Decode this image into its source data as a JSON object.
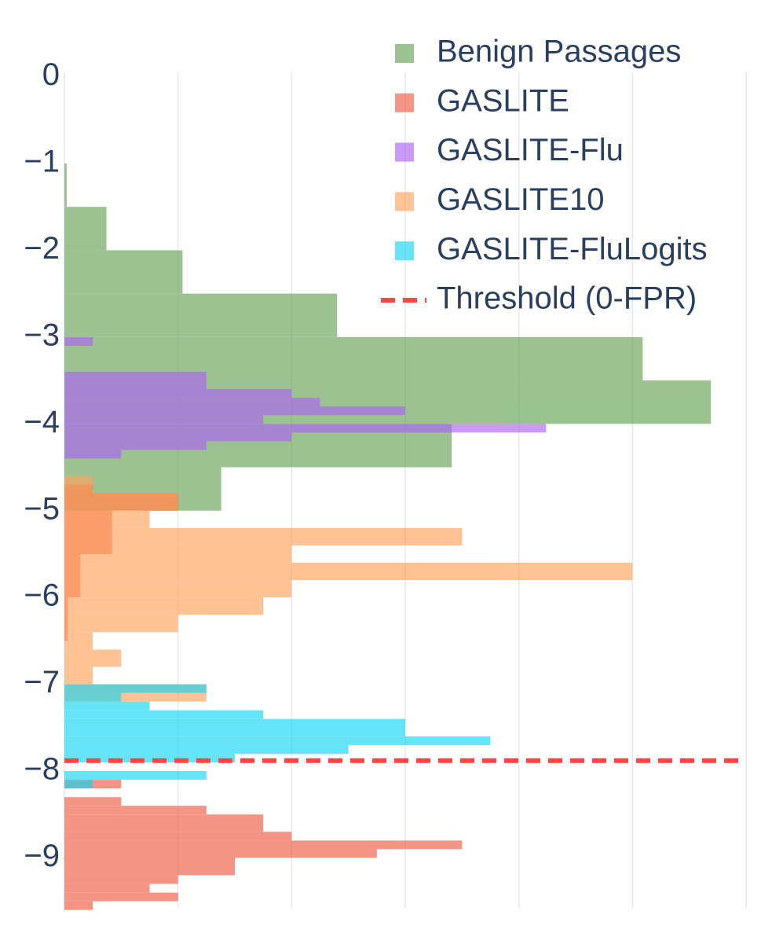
{
  "chart_data": {
    "type": "histogram",
    "orientation": "horizontal",
    "xlim": [
      0,
      6
    ],
    "xticks": [
      0,
      1,
      2,
      3,
      4,
      5,
      6
    ],
    "ylim": [
      -9.575,
      0.05
    ],
    "yticks": [
      0,
      {
        "value": -1,
        "label": "−1"
      },
      {
        "value": -2,
        "label": "−2"
      },
      {
        "value": -3,
        "label": "−3"
      },
      {
        "value": -4,
        "label": "−4"
      },
      {
        "value": -5,
        "label": "−5"
      },
      {
        "value": -6,
        "label": "−6"
      },
      {
        "value": -7,
        "label": "−7"
      },
      {
        "value": -8,
        "label": "−8"
      },
      {
        "value": -9,
        "label": "−9"
      }
    ],
    "grid": true,
    "opacity": 0.65,
    "legend": "top right",
    "series": [
      {
        "name": "Benign Passages",
        "color": "#66a356",
        "bins": [
          -5,
          -4.5,
          -4,
          -3.5,
          -3,
          -2.5,
          -2,
          -1.5,
          -1
        ],
        "values": [
          1.38,
          3.41,
          5.69,
          5.09,
          2.4,
          1.04,
          0.37,
          0.02
        ]
      },
      {
        "name": "GASLITE",
        "color": "#ee5c44",
        "bins": [
          -9.6,
          -9.5,
          -9.4,
          -9.3,
          -9.2,
          -9.0,
          -8.9,
          -8.8,
          -8.7,
          -8.5,
          -8.4,
          -8.3,
          -8.2,
          -8.1,
          -6.5,
          -6.0,
          -5.5,
          -5.0,
          -4.8,
          -4.7
        ],
        "values": [
          0.25,
          1.0,
          0.75,
          1.0,
          1.5,
          2.75,
          3.5,
          2.0,
          1.75,
          1.25,
          0.5,
          0,
          0.5,
          0,
          0.03,
          0.14,
          0.42,
          1.0,
          0.25
        ]
      },
      {
        "name": "GASLITE-Flu",
        "color": "#ad64f5",
        "bins": [
          -4.4,
          -4.3,
          -4.2,
          -4.1,
          -4.0,
          -3.9,
          -3.8,
          -3.7,
          -3.6,
          -3.5,
          -3.4,
          -3.3,
          -3.2,
          -3.1,
          -3.0
        ],
        "values": [
          0.5,
          1.25,
          2.0,
          4.24,
          1.75,
          3.0,
          2.25,
          2.0,
          1.25,
          1.25,
          0,
          0,
          0,
          0.25
        ]
      },
      {
        "name": "GASLITE10",
        "color": "#ffa35c",
        "bins": [
          -7.2,
          -7.0,
          -6.8,
          -6.6,
          -6.4,
          -6.2,
          -6.0,
          -5.8,
          -5.6,
          -5.4,
          -5.2,
          -5.0,
          -4.8,
          -4.6
        ],
        "values": [
          1.25,
          0.25,
          0.5,
          0.25,
          1.0,
          1.75,
          2.0,
          5.0,
          2.0,
          3.5,
          0.75,
          1.0,
          0.25
        ]
      },
      {
        "name": "GASLITE-FluLogits",
        "color": "#14d6f4",
        "bins": [
          -8.2,
          -8.1,
          -8.0,
          -7.9,
          -7.8,
          -7.7,
          -7.6,
          -7.4,
          -7.3,
          -7.2,
          -7.1,
          -7.0
        ],
        "values": [
          0.25,
          1.25,
          0,
          1.5,
          2.5,
          3.75,
          3.0,
          1.75,
          0.75,
          0.5,
          1.25
        ]
      }
    ],
    "threshold": {
      "name": "Threshold (0-FPR)",
      "color": "#ff4444",
      "value": -7.88
    }
  }
}
